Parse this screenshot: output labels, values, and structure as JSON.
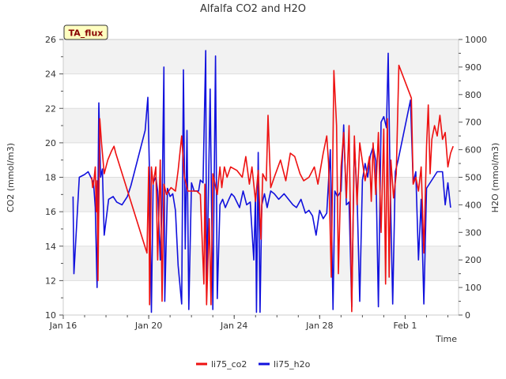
{
  "chart_data": {
    "type": "line",
    "title": "Alfalfa CO2 and H2O",
    "xlabel": "Time",
    "ylabel_left": "CO2 (mmol/m3)",
    "ylabel_right": "H2O (mmol/m3)",
    "badge": "TA_flux",
    "x_range": [
      "2020-01-16",
      "2020-02-03T12:00"
    ],
    "x_ticks": [
      {
        "date": "2020-01-16",
        "label": "Jan 16"
      },
      {
        "date": "2020-01-20",
        "label": "Jan 20"
      },
      {
        "date": "2020-01-24",
        "label": "Jan 24"
      },
      {
        "date": "2020-01-28",
        "label": "Jan 28"
      },
      {
        "date": "2020-02-01",
        "label": "Feb 1"
      }
    ],
    "ylim_left": [
      10,
      26
    ],
    "yticks_left": [
      10,
      12,
      14,
      16,
      18,
      20,
      22,
      24,
      26
    ],
    "ylim_right": [
      0,
      1000
    ],
    "yticks_right": [
      0,
      100,
      200,
      300,
      400,
      500,
      600,
      700,
      800,
      900,
      1000
    ],
    "grid": "horizontal bands",
    "legend_position": "bottom-center",
    "series": [
      {
        "name": "li75_co2",
        "color": "#ee1111",
        "axis": "left",
        "points": [
          [
            "2020-01-17T08:00",
            18.0
          ],
          [
            "2020-01-17T09:00",
            17.4
          ],
          [
            "2020-01-17T10:00",
            17.6
          ],
          [
            "2020-01-17T12:00",
            18.6
          ],
          [
            "2020-01-17T13:00",
            16.0
          ],
          [
            "2020-01-17T14:00",
            17.8
          ],
          [
            "2020-01-17T15:00",
            12.0
          ],
          [
            "2020-01-17T17:00",
            21.4
          ],
          [
            "2020-01-17T19:00",
            20.0
          ],
          [
            "2020-01-17T22:00",
            18.2
          ],
          [
            "2020-01-18T02:00",
            19.0
          ],
          [
            "2020-01-18T06:00",
            19.5
          ],
          [
            "2020-01-18T09:00",
            19.8
          ],
          [
            "2020-01-18T11:00",
            19.4
          ],
          [
            "2020-01-19T22:00",
            13.6
          ],
          [
            "2020-01-20T00:00",
            18.6
          ],
          [
            "2020-01-20T01:00",
            10.6
          ],
          [
            "2020-01-20T03:00",
            18.6
          ],
          [
            "2020-01-20T05:00",
            17.6
          ],
          [
            "2020-01-20T08:00",
            18.6
          ],
          [
            "2020-01-20T10:00",
            13.2
          ],
          [
            "2020-01-20T13:00",
            19.0
          ],
          [
            "2020-01-20T15:00",
            10.8
          ],
          [
            "2020-01-20T17:00",
            17.6
          ],
          [
            "2020-01-20T20:00",
            17.0
          ],
          [
            "2020-01-21T01:00",
            17.4
          ],
          [
            "2020-01-21T06:00",
            17.2
          ],
          [
            "2020-01-21T09:00",
            18.4
          ],
          [
            "2020-01-21T13:00",
            20.4
          ],
          [
            "2020-01-21T16:00",
            18.0
          ],
          [
            "2020-01-21T20:00",
            17.2
          ],
          [
            "2020-01-22T06:00",
            17.2
          ],
          [
            "2020-01-22T10:00",
            17.0
          ],
          [
            "2020-01-22T14:00",
            11.8
          ],
          [
            "2020-01-22T15:00",
            17.6
          ],
          [
            "2020-01-22T17:00",
            10.6
          ],
          [
            "2020-01-22T20:00",
            15.6
          ],
          [
            "2020-01-22T22:00",
            10.6
          ],
          [
            "2020-01-23T00:00",
            18.2
          ],
          [
            "2020-01-23T05:00",
            17.0
          ],
          [
            "2020-01-23T08:00",
            18.6
          ],
          [
            "2020-01-23T10:00",
            17.4
          ],
          [
            "2020-01-23T13:00",
            18.6
          ],
          [
            "2020-01-23T16:00",
            18.0
          ],
          [
            "2020-01-23T20:00",
            18.6
          ],
          [
            "2020-01-24T03:00",
            18.4
          ],
          [
            "2020-01-24T09:00",
            18.0
          ],
          [
            "2020-01-24T13:00",
            19.2
          ],
          [
            "2020-01-24T17:00",
            17.6
          ],
          [
            "2020-01-24T20:00",
            18.6
          ],
          [
            "2020-01-25T00:00",
            16.6
          ],
          [
            "2020-01-25T03:00",
            18.4
          ],
          [
            "2020-01-25T06:00",
            14.4
          ],
          [
            "2020-01-25T08:00",
            18.2
          ],
          [
            "2020-01-25T12:00",
            17.8
          ],
          [
            "2020-01-25T14:00",
            21.6
          ],
          [
            "2020-01-25T17:00",
            17.4
          ],
          [
            "2020-01-25T21:00",
            18.0
          ],
          [
            "2020-01-26T04:00",
            19.0
          ],
          [
            "2020-01-26T10:00",
            17.8
          ],
          [
            "2020-01-26T15:00",
            19.4
          ],
          [
            "2020-01-26T20:00",
            19.2
          ],
          [
            "2020-01-27T02:00",
            18.2
          ],
          [
            "2020-01-27T06:00",
            17.8
          ],
          [
            "2020-01-27T12:00",
            18.0
          ],
          [
            "2020-01-27T18:00",
            18.6
          ],
          [
            "2020-01-27T22:00",
            17.6
          ],
          [
            "2020-01-28T04:00",
            19.4
          ],
          [
            "2020-01-28T08:00",
            20.4
          ],
          [
            "2020-01-28T10:00",
            18.8
          ],
          [
            "2020-01-28T13:00",
            12.2
          ],
          [
            "2020-01-28T16:00",
            24.2
          ],
          [
            "2020-01-28T19:00",
            21.0
          ],
          [
            "2020-01-28T21:00",
            12.4
          ],
          [
            "2020-01-29T00:00",
            18.6
          ],
          [
            "2020-01-29T03:00",
            20.6
          ],
          [
            "2020-01-29T06:00",
            16.8
          ],
          [
            "2020-01-29T09:00",
            21.0
          ],
          [
            "2020-01-29T12:00",
            10.2
          ],
          [
            "2020-01-29T15:00",
            20.4
          ],
          [
            "2020-01-29T18:00",
            16.4
          ],
          [
            "2020-01-29T21:00",
            20.0
          ],
          [
            "2020-01-30T03:00",
            17.8
          ],
          [
            "2020-01-30T08:00",
            19.2
          ],
          [
            "2020-01-30T10:00",
            16.6
          ],
          [
            "2020-01-30T12:00",
            20.0
          ],
          [
            "2020-01-30T15:00",
            17.0
          ],
          [
            "2020-01-30T18:00",
            20.6
          ],
          [
            "2020-01-30T21:00",
            14.8
          ],
          [
            "2020-01-31T00:00",
            20.8
          ],
          [
            "2020-01-31T02:00",
            11.8
          ],
          [
            "2020-01-31T04:00",
            21.4
          ],
          [
            "2020-01-31T06:00",
            12.2
          ],
          [
            "2020-01-31T08:00",
            19.0
          ],
          [
            "2020-01-31T11:00",
            16.8
          ],
          [
            "2020-01-31T14:00",
            18.2
          ],
          [
            "2020-01-31T17:00",
            24.5
          ],
          [
            "2020-02-01T07:00",
            22.6
          ],
          [
            "2020-02-01T09:00",
            17.6
          ],
          [
            "2020-02-01T12:00",
            18.0
          ],
          [
            "2020-02-01T15:00",
            17.2
          ],
          [
            "2020-02-01T18:00",
            18.6
          ],
          [
            "2020-02-01T21:00",
            13.6
          ],
          [
            "2020-02-02T00:00",
            19.8
          ],
          [
            "2020-02-02T02:00",
            22.2
          ],
          [
            "2020-02-02T04:00",
            18.2
          ],
          [
            "2020-02-02T06:00",
            20.2
          ],
          [
            "2020-02-02T09:00",
            21.0
          ],
          [
            "2020-02-02T12:00",
            20.4
          ],
          [
            "2020-02-02T15:00",
            21.6
          ],
          [
            "2020-02-02T18:00",
            20.2
          ],
          [
            "2020-02-02T21:00",
            20.6
          ],
          [
            "2020-02-03T00:00",
            18.6
          ],
          [
            "2020-02-03T03:00",
            19.4
          ],
          [
            "2020-02-03T06:00",
            19.8
          ]
        ]
      },
      {
        "name": "li75_h2o",
        "color": "#1111dd",
        "axis": "right",
        "points": [
          [
            "2020-01-16T11:00",
            430
          ],
          [
            "2020-01-16T12:00",
            150
          ],
          [
            "2020-01-16T18:00",
            500
          ],
          [
            "2020-01-17T00:00",
            510
          ],
          [
            "2020-01-17T04:00",
            520
          ],
          [
            "2020-01-17T07:00",
            500
          ],
          [
            "2020-01-17T10:00",
            480
          ],
          [
            "2020-01-17T12:00",
            390
          ],
          [
            "2020-01-17T14:00",
            100
          ],
          [
            "2020-01-17T16:00",
            770
          ],
          [
            "2020-01-17T18:00",
            500
          ],
          [
            "2020-01-17T20:00",
            530
          ],
          [
            "2020-01-17T22:00",
            290
          ],
          [
            "2020-01-18T03:00",
            420
          ],
          [
            "2020-01-18T08:00",
            430
          ],
          [
            "2020-01-18T12:00",
            410
          ],
          [
            "2020-01-18T18:00",
            400
          ],
          [
            "2020-01-19T00:00",
            430
          ],
          [
            "2020-01-19T04:00",
            470
          ],
          [
            "2020-01-19T20:00",
            670
          ],
          [
            "2020-01-19T23:00",
            790
          ],
          [
            "2020-01-20T01:00",
            500
          ],
          [
            "2020-01-20T03:00",
            10
          ],
          [
            "2020-01-20T05:00",
            480
          ],
          [
            "2020-01-20T08:00",
            500
          ],
          [
            "2020-01-20T10:00",
            450
          ],
          [
            "2020-01-20T13:00",
            200
          ],
          [
            "2020-01-20T15:00",
            400
          ],
          [
            "2020-01-20T17:00",
            900
          ],
          [
            "2020-01-20T18:00",
            50
          ],
          [
            "2020-01-20T21:00",
            460
          ],
          [
            "2020-01-21T00:00",
            430
          ],
          [
            "2020-01-21T03:00",
            440
          ],
          [
            "2020-01-21T06:00",
            380
          ],
          [
            "2020-01-21T09:00",
            180
          ],
          [
            "2020-01-21T13:00",
            40
          ],
          [
            "2020-01-21T15:00",
            890
          ],
          [
            "2020-01-21T17:00",
            240
          ],
          [
            "2020-01-21T19:00",
            670
          ],
          [
            "2020-01-21T21:00",
            20
          ],
          [
            "2020-01-22T00:00",
            480
          ],
          [
            "2020-01-22T03:00",
            450
          ],
          [
            "2020-01-22T08:00",
            450
          ],
          [
            "2020-01-22T10:00",
            490
          ],
          [
            "2020-01-22T13:00",
            480
          ],
          [
            "2020-01-22T16:00",
            960
          ],
          [
            "2020-01-22T17:00",
            80
          ],
          [
            "2020-01-22T19:00",
            440
          ],
          [
            "2020-01-22T21:00",
            820
          ],
          [
            "2020-01-23T00:00",
            20
          ],
          [
            "2020-01-23T03:00",
            940
          ],
          [
            "2020-01-23T05:00",
            60
          ],
          [
            "2020-01-23T08:00",
            400
          ],
          [
            "2020-01-23T11:00",
            420
          ],
          [
            "2020-01-23T14:00",
            390
          ],
          [
            "2020-01-23T18:00",
            420
          ],
          [
            "2020-01-23T21:00",
            440
          ],
          [
            "2020-01-24T00:00",
            430
          ],
          [
            "2020-01-24T06:00",
            390
          ],
          [
            "2020-01-24T10:00",
            450
          ],
          [
            "2020-01-24T14:00",
            400
          ],
          [
            "2020-01-24T18:00",
            410
          ],
          [
            "2020-01-24T22:00",
            200
          ],
          [
            "2020-01-25T00:00",
            440
          ],
          [
            "2020-01-25T01:00",
            10
          ],
          [
            "2020-01-25T03:00",
            590
          ],
          [
            "2020-01-25T05:00",
            10
          ],
          [
            "2020-01-25T07:00",
            400
          ],
          [
            "2020-01-25T10:00",
            440
          ],
          [
            "2020-01-25T13:00",
            390
          ],
          [
            "2020-01-25T17:00",
            450
          ],
          [
            "2020-01-25T21:00",
            440
          ],
          [
            "2020-01-26T02:00",
            420
          ],
          [
            "2020-01-26T08:00",
            440
          ],
          [
            "2020-01-26T13:00",
            420
          ],
          [
            "2020-01-26T18:00",
            400
          ],
          [
            "2020-01-26T22:00",
            390
          ],
          [
            "2020-01-27T03:00",
            420
          ],
          [
            "2020-01-27T08:00",
            370
          ],
          [
            "2020-01-27T12:00",
            380
          ],
          [
            "2020-01-27T16:00",
            360
          ],
          [
            "2020-01-27T20:00",
            290
          ],
          [
            "2020-01-28T00:00",
            380
          ],
          [
            "2020-01-28T04:00",
            350
          ],
          [
            "2020-01-28T08:00",
            370
          ],
          [
            "2020-01-28T12:00",
            600
          ],
          [
            "2020-01-28T15:00",
            20
          ],
          [
            "2020-01-28T17:00",
            450
          ],
          [
            "2020-01-28T20:00",
            430
          ],
          [
            "2020-01-29T00:00",
            450
          ],
          [
            "2020-01-29T03:00",
            690
          ],
          [
            "2020-01-29T06:00",
            400
          ],
          [
            "2020-01-29T09:00",
            410
          ],
          [
            "2020-01-29T12:00",
            30
          ],
          [
            "2020-01-29T15:00",
            620
          ],
          [
            "2020-01-29T18:00",
            440
          ],
          [
            "2020-01-29T21:00",
            50
          ],
          [
            "2020-01-30T00:00",
            490
          ],
          [
            "2020-01-30T03:00",
            550
          ],
          [
            "2020-01-30T06:00",
            500
          ],
          [
            "2020-01-30T09:00",
            580
          ],
          [
            "2020-01-30T12:00",
            610
          ],
          [
            "2020-01-30T15:00",
            560
          ],
          [
            "2020-01-30T18:00",
            30
          ],
          [
            "2020-01-30T21:00",
            700
          ],
          [
            "2020-01-31T00:00",
            720
          ],
          [
            "2020-01-31T03:00",
            680
          ],
          [
            "2020-01-31T05:00",
            950
          ],
          [
            "2020-01-31T07:00",
            510
          ],
          [
            "2020-01-31T10:00",
            40
          ],
          [
            "2020-01-31T13:00",
            520
          ],
          [
            "2020-01-31T16:00",
            560
          ],
          [
            "2020-02-01T06:00",
            780
          ],
          [
            "2020-02-01T09:00",
            480
          ],
          [
            "2020-02-01T12:00",
            520
          ],
          [
            "2020-02-01T15:00",
            200
          ],
          [
            "2020-02-01T18:00",
            420
          ],
          [
            "2020-02-01T21:00",
            40
          ],
          [
            "2020-02-02T00:00",
            460
          ],
          [
            "2020-02-02T04:00",
            480
          ],
          [
            "2020-02-02T08:00",
            500
          ],
          [
            "2020-02-02T12:00",
            520
          ],
          [
            "2020-02-02T18:00",
            520
          ],
          [
            "2020-02-02T21:00",
            400
          ],
          [
            "2020-02-03T00:00",
            480
          ],
          [
            "2020-02-03T03:00",
            390
          ]
        ]
      }
    ]
  }
}
